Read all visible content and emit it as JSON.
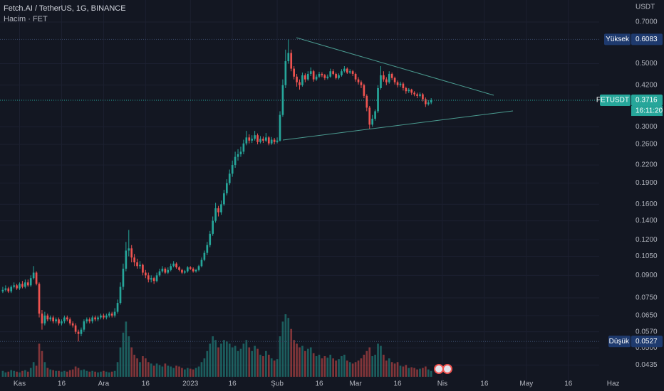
{
  "chart_data": {
    "type": "candlestick",
    "title": "Fetch.AI / TetherUS, 1G, BINANCE",
    "subtitle": "Hacim · FET",
    "y_unit": "USDT",
    "log_y": true,
    "grid": true,
    "up_color": "#26a69a",
    "down_color": "#ef5350",
    "volume_up_color": "rgba(38,166,154,0.5)",
    "volume_down_color": "rgba(239,83,80,0.5)",
    "xlim": [
      -1,
      213
    ],
    "ylim": [
      0.0378,
      0.837
    ],
    "xticks": [
      {
        "value": 6,
        "label": "Kas"
      },
      {
        "value": 21,
        "label": "16"
      },
      {
        "value": 36,
        "label": "Ara"
      },
      {
        "value": 51,
        "label": "16"
      },
      {
        "value": 67,
        "label": "2023"
      },
      {
        "value": 82,
        "label": "16"
      },
      {
        "value": 98,
        "label": "Şub"
      },
      {
        "value": 113,
        "label": "16"
      },
      {
        "value": 126,
        "label": "Mar"
      },
      {
        "value": 141,
        "label": "16"
      },
      {
        "value": 157,
        "label": "Nis"
      },
      {
        "value": 172,
        "label": "16"
      },
      {
        "value": 187,
        "label": "May"
      },
      {
        "value": 202,
        "label": "16"
      },
      {
        "value": 218,
        "label": "Haz"
      }
    ],
    "yticks": [
      {
        "value": 0.7,
        "label": "0.7000"
      },
      {
        "value": 0.5,
        "label": "0.5000"
      },
      {
        "value": 0.42,
        "label": "0.4200"
      },
      {
        "value": 0.3,
        "label": "0.3000"
      },
      {
        "value": 0.26,
        "label": "0.2600"
      },
      {
        "value": 0.22,
        "label": "0.2200"
      },
      {
        "value": 0.19,
        "label": "0.1900"
      },
      {
        "value": 0.16,
        "label": "0.1600"
      },
      {
        "value": 0.14,
        "label": "0.1400"
      },
      {
        "value": 0.12,
        "label": "0.1200"
      },
      {
        "value": 0.105,
        "label": "0.1050"
      },
      {
        "value": 0.09,
        "label": "0.0900"
      },
      {
        "value": 0.075,
        "label": "0.0750"
      },
      {
        "value": 0.065,
        "label": "0.0650"
      },
      {
        "value": 0.057,
        "label": "0.0570"
      },
      {
        "value": 0.05,
        "label": "0.0500"
      },
      0.0435
    ],
    "high_marker": {
      "label": "Yüksek",
      "value": 0.6083
    },
    "low_marker": {
      "label": "Düşük",
      "value": 0.0527
    },
    "last_marker": {
      "label": "FETUSDT",
      "value": 0.3716,
      "countdown": "16:11:20"
    },
    "x": [
      0,
      1,
      2,
      3,
      4,
      5,
      6,
      7,
      8,
      9,
      10,
      11,
      12,
      13,
      14,
      15,
      16,
      17,
      18,
      19,
      20,
      21,
      22,
      23,
      24,
      25,
      26,
      27,
      28,
      29,
      30,
      31,
      32,
      33,
      34,
      35,
      36,
      37,
      38,
      39,
      40,
      41,
      42,
      43,
      44,
      45,
      46,
      47,
      48,
      49,
      50,
      51,
      52,
      53,
      54,
      55,
      56,
      57,
      58,
      59,
      60,
      61,
      62,
      63,
      64,
      65,
      66,
      67,
      68,
      69,
      70,
      71,
      72,
      73,
      74,
      75,
      76,
      77,
      78,
      79,
      80,
      81,
      82,
      83,
      84,
      85,
      86,
      87,
      88,
      89,
      90,
      91,
      92,
      93,
      94,
      95,
      96,
      97,
      98,
      99,
      100,
      101,
      102,
      103,
      104,
      105,
      106,
      107,
      108,
      109,
      110,
      111,
      112,
      113,
      114,
      115,
      116,
      117,
      118,
      119,
      120,
      121,
      122,
      123,
      124,
      125,
      126,
      127,
      128,
      129,
      130,
      131,
      132,
      133,
      134,
      135,
      136,
      137,
      138,
      139,
      140,
      141,
      142,
      143,
      144,
      145,
      146,
      147,
      148,
      149,
      150,
      151,
      152,
      153
    ],
    "open": [
      0.079,
      0.08,
      0.081,
      0.079,
      0.082,
      0.083,
      0.081,
      0.084,
      0.082,
      0.085,
      0.083,
      0.088,
      0.092,
      0.084,
      0.066,
      0.061,
      0.065,
      0.063,
      0.064,
      0.062,
      0.063,
      0.061,
      0.062,
      0.064,
      0.063,
      0.061,
      0.06,
      0.057,
      0.056,
      0.058,
      0.062,
      0.063,
      0.062,
      0.064,
      0.063,
      0.064,
      0.065,
      0.064,
      0.065,
      0.066,
      0.065,
      0.067,
      0.072,
      0.082,
      0.095,
      0.11,
      0.112,
      0.104,
      0.1,
      0.097,
      0.098,
      0.092,
      0.09,
      0.087,
      0.088,
      0.086,
      0.09,
      0.093,
      0.095,
      0.092,
      0.094,
      0.097,
      0.099,
      0.096,
      0.094,
      0.092,
      0.093,
      0.096,
      0.095,
      0.093,
      0.094,
      0.097,
      0.102,
      0.108,
      0.115,
      0.126,
      0.14,
      0.155,
      0.15,
      0.16,
      0.175,
      0.19,
      0.205,
      0.22,
      0.235,
      0.24,
      0.245,
      0.262,
      0.275,
      0.268,
      0.272,
      0.28,
      0.265,
      0.272,
      0.268,
      0.275,
      0.262,
      0.27,
      0.265,
      0.268,
      0.33,
      0.42,
      0.51,
      0.545,
      0.48,
      0.45,
      0.43,
      0.42,
      0.455,
      0.44,
      0.46,
      0.47,
      0.44,
      0.45,
      0.46,
      0.455,
      0.445,
      0.45,
      0.47,
      0.46,
      0.445,
      0.455,
      0.47,
      0.48,
      0.465,
      0.47,
      0.46,
      0.44,
      0.43,
      0.42,
      0.385,
      0.35,
      0.305,
      0.32,
      0.34,
      0.41,
      0.455,
      0.44,
      0.43,
      0.46,
      0.445,
      0.43,
      0.42,
      0.425,
      0.41,
      0.4,
      0.405,
      0.395,
      0.39,
      0.385,
      0.39,
      0.375,
      0.36,
      0.365
    ],
    "high": [
      0.082,
      0.083,
      0.082,
      0.083,
      0.085,
      0.084,
      0.085,
      0.086,
      0.087,
      0.087,
      0.09,
      0.097,
      0.093,
      0.085,
      0.068,
      0.067,
      0.066,
      0.065,
      0.065,
      0.064,
      0.064,
      0.063,
      0.065,
      0.065,
      0.064,
      0.062,
      0.061,
      0.058,
      0.059,
      0.063,
      0.064,
      0.064,
      0.065,
      0.065,
      0.065,
      0.066,
      0.066,
      0.066,
      0.067,
      0.067,
      0.069,
      0.074,
      0.085,
      0.099,
      0.118,
      0.13,
      0.115,
      0.107,
      0.103,
      0.101,
      0.099,
      0.094,
      0.092,
      0.09,
      0.089,
      0.092,
      0.095,
      0.097,
      0.096,
      0.096,
      0.099,
      0.101,
      0.1,
      0.097,
      0.095,
      0.094,
      0.097,
      0.097,
      0.096,
      0.095,
      0.098,
      0.104,
      0.11,
      0.118,
      0.129,
      0.145,
      0.162,
      0.158,
      0.165,
      0.18,
      0.196,
      0.212,
      0.228,
      0.245,
      0.25,
      0.255,
      0.27,
      0.29,
      0.282,
      0.28,
      0.29,
      0.284,
      0.278,
      0.277,
      0.285,
      0.278,
      0.276,
      0.274,
      0.275,
      0.34,
      0.44,
      0.56,
      0.6083,
      0.56,
      0.49,
      0.46,
      0.44,
      0.465,
      0.462,
      0.47,
      0.485,
      0.475,
      0.458,
      0.468,
      0.466,
      0.46,
      0.458,
      0.48,
      0.478,
      0.465,
      0.462,
      0.478,
      0.49,
      0.485,
      0.478,
      0.475,
      0.465,
      0.448,
      0.436,
      0.425,
      0.39,
      0.355,
      0.33,
      0.345,
      0.42,
      0.49,
      0.47,
      0.448,
      0.47,
      0.465,
      0.45,
      0.436,
      0.432,
      0.43,
      0.415,
      0.41,
      0.408,
      0.4,
      0.395,
      0.396,
      0.394,
      0.38,
      0.372,
      0.378
    ],
    "low": [
      0.078,
      0.079,
      0.078,
      0.078,
      0.081,
      0.08,
      0.08,
      0.081,
      0.081,
      0.082,
      0.082,
      0.087,
      0.083,
      0.064,
      0.058,
      0.06,
      0.062,
      0.062,
      0.061,
      0.061,
      0.06,
      0.06,
      0.061,
      0.062,
      0.06,
      0.059,
      0.056,
      0.0527,
      0.055,
      0.057,
      0.061,
      0.061,
      0.061,
      0.062,
      0.062,
      0.063,
      0.063,
      0.063,
      0.064,
      0.064,
      0.064,
      0.066,
      0.071,
      0.08,
      0.093,
      0.105,
      0.1,
      0.097,
      0.095,
      0.095,
      0.09,
      0.088,
      0.085,
      0.085,
      0.084,
      0.085,
      0.089,
      0.092,
      0.091,
      0.091,
      0.093,
      0.096,
      0.095,
      0.093,
      0.091,
      0.091,
      0.092,
      0.094,
      0.092,
      0.092,
      0.093,
      0.096,
      0.101,
      0.106,
      0.113,
      0.124,
      0.138,
      0.145,
      0.147,
      0.158,
      0.172,
      0.187,
      0.2,
      0.215,
      0.228,
      0.235,
      0.24,
      0.258,
      0.262,
      0.263,
      0.268,
      0.26,
      0.262,
      0.263,
      0.265,
      0.258,
      0.259,
      0.26,
      0.262,
      0.266,
      0.325,
      0.41,
      0.5,
      0.47,
      0.44,
      0.415,
      0.405,
      0.415,
      0.43,
      0.435,
      0.452,
      0.432,
      0.435,
      0.445,
      0.448,
      0.438,
      0.44,
      0.446,
      0.455,
      0.44,
      0.44,
      0.45,
      0.465,
      0.46,
      0.46,
      0.452,
      0.432,
      0.422,
      0.41,
      0.378,
      0.34,
      0.295,
      0.3,
      0.315,
      0.335,
      0.405,
      0.432,
      0.42,
      0.425,
      0.438,
      0.422,
      0.412,
      0.414,
      0.402,
      0.392,
      0.394,
      0.388,
      0.384,
      0.378,
      0.38,
      0.368,
      0.352,
      0.356,
      0.36
    ],
    "close": [
      0.08,
      0.081,
      0.079,
      0.082,
      0.083,
      0.081,
      0.084,
      0.082,
      0.085,
      0.083,
      0.088,
      0.092,
      0.084,
      0.066,
      0.061,
      0.065,
      0.063,
      0.064,
      0.062,
      0.063,
      0.061,
      0.062,
      0.064,
      0.063,
      0.061,
      0.06,
      0.057,
      0.056,
      0.058,
      0.062,
      0.063,
      0.062,
      0.064,
      0.063,
      0.064,
      0.065,
      0.064,
      0.065,
      0.066,
      0.065,
      0.067,
      0.072,
      0.082,
      0.095,
      0.11,
      0.112,
      0.104,
      0.1,
      0.097,
      0.098,
      0.092,
      0.09,
      0.087,
      0.088,
      0.086,
      0.09,
      0.093,
      0.095,
      0.092,
      0.094,
      0.097,
      0.099,
      0.096,
      0.094,
      0.092,
      0.093,
      0.096,
      0.095,
      0.093,
      0.094,
      0.097,
      0.102,
      0.108,
      0.115,
      0.126,
      0.14,
      0.155,
      0.15,
      0.16,
      0.175,
      0.19,
      0.205,
      0.22,
      0.235,
      0.24,
      0.245,
      0.262,
      0.275,
      0.268,
      0.272,
      0.28,
      0.265,
      0.272,
      0.268,
      0.275,
      0.262,
      0.27,
      0.265,
      0.268,
      0.33,
      0.42,
      0.51,
      0.545,
      0.48,
      0.45,
      0.43,
      0.42,
      0.455,
      0.44,
      0.46,
      0.47,
      0.44,
      0.45,
      0.46,
      0.455,
      0.445,
      0.45,
      0.47,
      0.46,
      0.445,
      0.455,
      0.47,
      0.48,
      0.465,
      0.47,
      0.46,
      0.44,
      0.43,
      0.42,
      0.385,
      0.35,
      0.305,
      0.32,
      0.34,
      0.41,
      0.455,
      0.44,
      0.43,
      0.46,
      0.445,
      0.43,
      0.42,
      0.425,
      0.41,
      0.4,
      0.405,
      0.395,
      0.39,
      0.385,
      0.39,
      0.375,
      0.36,
      0.365,
      0.3716
    ],
    "volume": [
      8,
      6,
      7,
      9,
      8,
      7,
      6,
      8,
      9,
      7,
      12,
      20,
      15,
      45,
      35,
      20,
      12,
      10,
      9,
      8,
      8,
      7,
      8,
      7,
      9,
      10,
      14,
      12,
      9,
      10,
      8,
      7,
      8,
      7,
      6,
      7,
      8,
      7,
      6,
      7,
      8,
      20,
      40,
      60,
      75,
      55,
      40,
      30,
      25,
      20,
      28,
      25,
      20,
      18,
      15,
      18,
      16,
      14,
      18,
      15,
      14,
      12,
      15,
      14,
      12,
      10,
      12,
      11,
      10,
      12,
      14,
      20,
      25,
      35,
      45,
      55,
      50,
      40,
      45,
      50,
      48,
      45,
      40,
      42,
      35,
      38,
      45,
      50,
      40,
      35,
      42,
      38,
      30,
      28,
      35,
      30,
      25,
      22,
      24,
      55,
      75,
      85,
      80,
      65,
      50,
      45,
      40,
      42,
      35,
      38,
      40,
      32,
      28,
      30,
      25,
      28,
      26,
      30,
      25,
      22,
      24,
      28,
      30,
      22,
      20,
      18,
      20,
      22,
      25,
      30,
      35,
      40,
      28,
      30,
      45,
      42,
      30,
      22,
      25,
      20,
      18,
      20,
      15,
      14,
      16,
      12,
      13,
      12,
      10,
      11,
      12,
      14,
      10,
      8
    ]
  }
}
